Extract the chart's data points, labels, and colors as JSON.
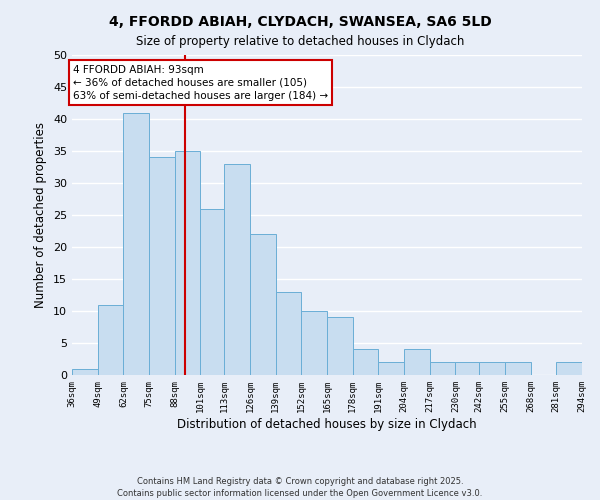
{
  "title": "4, FFORDD ABIAH, CLYDACH, SWANSEA, SA6 5LD",
  "subtitle": "Size of property relative to detached houses in Clydach",
  "xlabel": "Distribution of detached houses by size in Clydach",
  "ylabel": "Number of detached properties",
  "bar_color": "#c8ddf0",
  "bar_edge_color": "#6aaed6",
  "background_color": "#e8eef8",
  "grid_color": "#ffffff",
  "bins": [
    36,
    49,
    62,
    75,
    88,
    101,
    113,
    126,
    139,
    152,
    165,
    178,
    191,
    204,
    217,
    230,
    242,
    255,
    268,
    281,
    294
  ],
  "counts": [
    1,
    11,
    41,
    34,
    35,
    26,
    33,
    22,
    13,
    10,
    9,
    4,
    2,
    4,
    2,
    2,
    2,
    2,
    0,
    2
  ],
  "tick_labels": [
    "36sqm",
    "49sqm",
    "62sqm",
    "75sqm",
    "88sqm",
    "101sqm",
    "113sqm",
    "126sqm",
    "139sqm",
    "152sqm",
    "165sqm",
    "178sqm",
    "191sqm",
    "204sqm",
    "217sqm",
    "230sqm",
    "242sqm",
    "255sqm",
    "268sqm",
    "281sqm",
    "294sqm"
  ],
  "ylim": [
    0,
    50
  ],
  "yticks": [
    0,
    5,
    10,
    15,
    20,
    25,
    30,
    35,
    40,
    45,
    50
  ],
  "vline_x": 93,
  "vline_color": "#cc0000",
  "annotation_title": "4 FFORDD ABIAH: 93sqm",
  "annotation_line1": "← 36% of detached houses are smaller (105)",
  "annotation_line2": "63% of semi-detached houses are larger (184) →",
  "annotation_box_color": "#ffffff",
  "annotation_box_edge": "#cc0000",
  "footnote1": "Contains HM Land Registry data © Crown copyright and database right 2025.",
  "footnote2": "Contains public sector information licensed under the Open Government Licence v3.0."
}
